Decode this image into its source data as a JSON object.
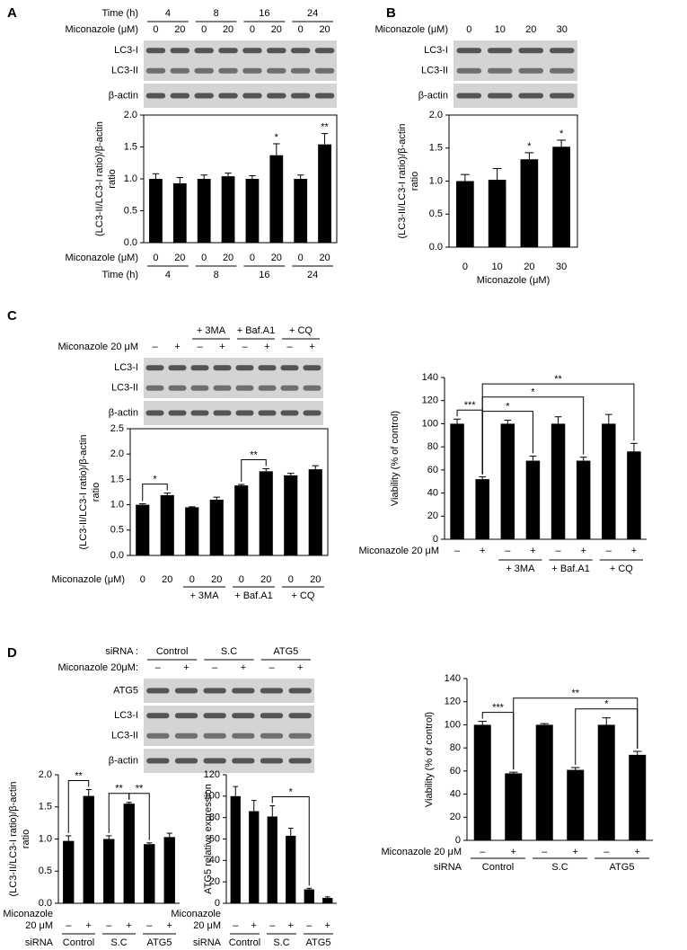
{
  "chart_data": [
    {
      "type": "bar",
      "panel": "A",
      "ylabel": [
        "(LC3-II/LC3-I ratio)/β-actin",
        "ratio"
      ],
      "categories": [
        "0",
        "20",
        "0",
        "20",
        "0",
        "20",
        "0",
        "20"
      ],
      "row_label": "Miconazole (μM)",
      "groups": [
        "4",
        "8",
        "16",
        "24"
      ],
      "group_row_label": "Time (h)",
      "values": [
        1.0,
        0.93,
        1.0,
        1.04,
        1.0,
        1.37,
        1.0,
        1.54
      ],
      "errors": [
        0.08,
        0.09,
        0.06,
        0.05,
        0.05,
        0.18,
        0.06,
        0.17
      ],
      "stars": [
        null,
        null,
        null,
        null,
        null,
        "*",
        null,
        "**"
      ],
      "color": "#000000",
      "ylim": [
        0,
        2
      ],
      "yticks": [
        {
          "value": 0,
          "label": "0.0"
        },
        0.5,
        {
          "value": 1,
          "label": "1.0"
        },
        1.5,
        {
          "value": 2,
          "label": "2.0"
        }
      ],
      "frame": true,
      "blot": {
        "header_label": "Time (h)",
        "header": [
          "4",
          "8",
          "16",
          "24"
        ],
        "lane_label": "Miconazole (μM)",
        "lanes": [
          "0",
          "20",
          "0",
          "20",
          "0",
          "20",
          "0",
          "20"
        ],
        "rows": [
          [
            "LC3-I",
            "LC3-II"
          ],
          [
            "β-actin"
          ]
        ]
      }
    },
    {
      "type": "bar",
      "panel": "B",
      "ylabel": [
        "(LC3-II/LC3-I ratio)/β-actin",
        "ratio"
      ],
      "categories": [
        "0",
        "10",
        "20",
        "30"
      ],
      "xlabel": "Miconazole (μM)",
      "values": [
        1.0,
        1.02,
        1.33,
        1.52
      ],
      "errors": [
        0.1,
        0.17,
        0.1,
        0.1
      ],
      "stars": [
        null,
        null,
        "*",
        "*"
      ],
      "color": "#000000",
      "ylim": [
        0,
        2
      ],
      "yticks": [
        {
          "value": 0,
          "label": "0.0"
        },
        0.5,
        {
          "value": 1,
          "label": "1.0"
        },
        1.5,
        {
          "value": 2,
          "label": "2.0"
        }
      ],
      "frame": true,
      "blot": {
        "lane_label": "Miconazole (μM)",
        "lanes": [
          "0",
          "10",
          "20",
          "30"
        ],
        "rows": [
          [
            "LC3-I",
            "LC3-II"
          ],
          [
            "β-actin"
          ]
        ]
      }
    },
    {
      "type": "bar",
      "panel": "C",
      "ylabel": [
        "(LC3-II/LC3-I ratio)/β-actin",
        "ratio"
      ],
      "categories": [
        "0",
        "20",
        "0",
        "20",
        "0",
        "20",
        "0",
        "20"
      ],
      "row_label": "Miconazole (μM)",
      "groups": [
        null,
        "+ 3MA",
        "+ Baf.A1",
        "+ CQ"
      ],
      "values": [
        1.0,
        1.19,
        0.95,
        1.1,
        1.38,
        1.66,
        1.58,
        1.7
      ],
      "errors": [
        0.02,
        0.04,
        0.01,
        0.05,
        0.02,
        0.05,
        0.04,
        0.07
      ],
      "brackets": [
        {
          "label": "*",
          "from": 0,
          "to": 1
        },
        {
          "label": "**",
          "from": 4,
          "to": 5
        }
      ],
      "color": "#000000",
      "ylim": [
        0,
        2.5
      ],
      "yticks": [
        {
          "value": 0,
          "label": "0.0"
        },
        0.5,
        {
          "value": 1,
          "label": "1.0"
        },
        1.5,
        {
          "value": 2,
          "label": "2.0"
        },
        2.5
      ],
      "frame": true,
      "blot": {
        "header": [
          null,
          "+ 3MA",
          "+ Baf.A1",
          "+ CQ"
        ],
        "lane_label": "Miconazole 20 μM",
        "lanes": [
          "–",
          "+",
          "–",
          "+",
          "–",
          "+",
          "–",
          "+"
        ],
        "rows": [
          [
            "LC3-I",
            "LC3-II"
          ],
          [
            "β-actin"
          ]
        ]
      }
    },
    {
      "type": "bar",
      "ylabel": [
        "Viability (% of control)"
      ],
      "categories": [
        "–",
        "+",
        "–",
        "+",
        "–",
        "+",
        "–",
        "+"
      ],
      "row_label": "Miconazole 20 μM",
      "groups": [
        null,
        "+ 3MA",
        "+ Baf.A1",
        "+ CQ"
      ],
      "values": [
        100,
        52,
        100,
        68,
        100,
        68,
        100,
        76
      ],
      "errors": [
        4,
        2,
        3,
        4,
        6,
        3,
        8,
        7
      ],
      "brackets": [
        {
          "label": "***",
          "from": 0,
          "to": 1
        },
        {
          "label": "*",
          "from": 1,
          "to": 3
        },
        {
          "label": "*",
          "from": 1,
          "to": 5
        },
        {
          "label": "**",
          "from": 1,
          "to": 7
        }
      ],
      "color": "#000000",
      "ylim": [
        0,
        140
      ],
      "yticks": [
        0,
        20,
        40,
        60,
        80,
        100,
        120,
        140
      ],
      "frame": false
    },
    {
      "type": "bar",
      "panel": "D",
      "ylabel": [
        "(LC3-II/LC3-I ratio)/β-actin",
        "ratio"
      ],
      "categories": [
        "–",
        "+",
        "–",
        "+",
        "–",
        "+"
      ],
      "row_label": [
        "Miconazole",
        "20 μM"
      ],
      "groups": [
        "Control",
        "S.C",
        "ATG5"
      ],
      "group_row_label": "siRNA",
      "values": [
        0.97,
        1.67,
        1.0,
        1.55,
        0.92,
        1.03
      ],
      "errors": [
        0.08,
        0.1,
        0.05,
        0.02,
        0.02,
        0.06
      ],
      "brackets": [
        {
          "label": "**",
          "from": 0,
          "to": 1
        },
        {
          "label": "**",
          "from": 2,
          "to": 3
        },
        {
          "label": "**",
          "from": 3,
          "to": 4
        }
      ],
      "color": "#000000",
      "ylim": [
        0,
        2
      ],
      "yticks": [
        {
          "value": 0,
          "label": "0.0"
        },
        0.5,
        {
          "value": 1,
          "label": "1.0"
        },
        1.5,
        {
          "value": 2,
          "label": "2.0"
        }
      ],
      "frame": false,
      "blot": {
        "header_label": "siRNA :",
        "header": [
          "Control",
          "S.C",
          "ATG5"
        ],
        "lane_label": "Miconazole 20μM:",
        "lanes": [
          "–",
          "+",
          "–",
          "+",
          "–",
          "+"
        ],
        "rows": [
          [
            "ATG5"
          ],
          [
            "LC3-I",
            "LC3-II"
          ],
          [
            "β-actin"
          ]
        ]
      }
    },
    {
      "type": "bar",
      "ylabel": [
        "ATG5 relative expression"
      ],
      "categories": [
        "–",
        "+",
        "–",
        "+",
        "–",
        "+"
      ],
      "row_label": [
        "Miconazole",
        "20 μM"
      ],
      "groups": [
        "Control",
        "S.C",
        "ATG5"
      ],
      "group_row_label": "siRNA",
      "values": [
        100,
        86,
        81,
        63,
        13,
        5
      ],
      "errors": [
        9,
        10,
        10,
        7,
        1,
        1
      ],
      "brackets": [
        {
          "label": "*",
          "from": 2,
          "to": 4
        }
      ],
      "color": "#000000",
      "ylim": [
        0,
        120
      ],
      "yticks": [
        0,
        20,
        40,
        60,
        80,
        100,
        120
      ],
      "frame": false
    },
    {
      "type": "bar",
      "ylabel": [
        "Viability (% of control)"
      ],
      "categories": [
        "–",
        "+",
        "–",
        "+",
        "–",
        "+"
      ],
      "row_label": "Miconazole 20 μM",
      "groups": [
        "Control",
        "S.C",
        "ATG5"
      ],
      "group_row_label": "siRNA",
      "values": [
        100,
        58,
        100,
        61,
        100,
        74
      ],
      "errors": [
        3,
        1,
        1,
        2,
        6,
        3
      ],
      "brackets": [
        {
          "label": "***",
          "from": 0,
          "to": 1
        },
        {
          "label": "**",
          "from": 1,
          "to": 5
        },
        {
          "label": "*",
          "from": 3,
          "to": 5
        }
      ],
      "color": "#000000",
      "ylim": [
        0,
        140
      ],
      "yticks": [
        0,
        20,
        40,
        60,
        80,
        100,
        120,
        140
      ],
      "frame": false
    }
  ]
}
